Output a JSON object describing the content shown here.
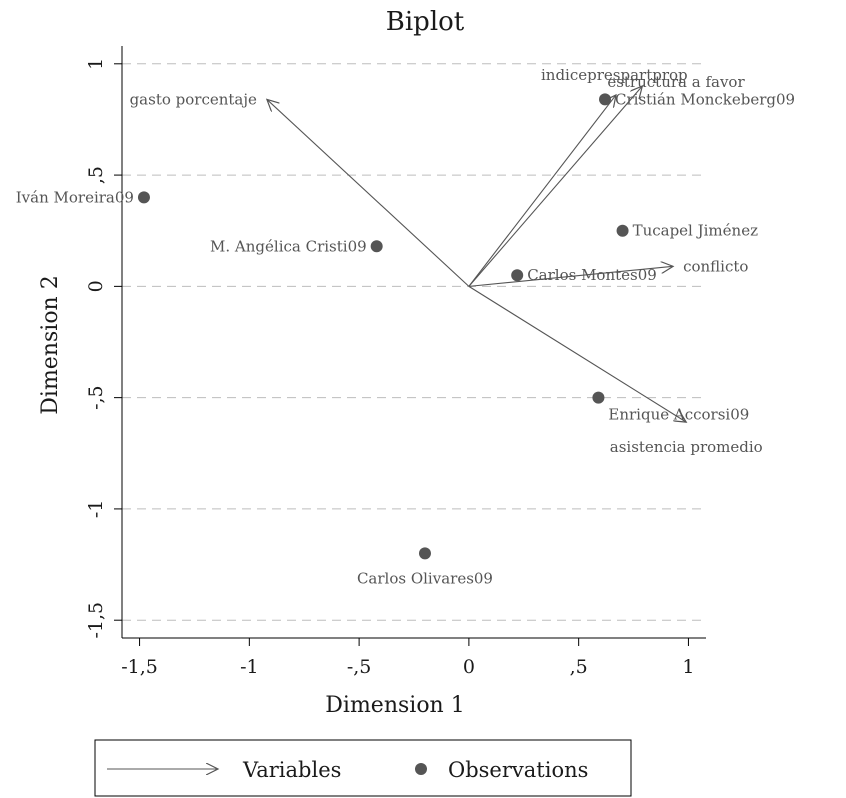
{
  "chart_data": {
    "type": "scatter",
    "title": "Biplot",
    "xlabel": "Dimension 1",
    "ylabel": "Dimension 2",
    "xlim": [
      -1.58,
      1.08
    ],
    "ylim": [
      -1.58,
      1.08
    ],
    "x_ticks": [
      -1.5,
      -1,
      -0.5,
      0,
      0.5,
      1
    ],
    "x_tick_labels": [
      "-1,5",
      "-1",
      "-,5",
      "0",
      ",5",
      "1"
    ],
    "y_ticks": [
      1,
      0.5,
      0,
      -0.5,
      -1,
      -1.5
    ],
    "y_tick_labels": [
      "1",
      ",5",
      "0",
      "-,5",
      "-1",
      "-1,5"
    ],
    "grid": "horizontal-dashed",
    "legend": {
      "position": "bottom",
      "entries": [
        {
          "name": "Variables",
          "marker": "arrow"
        },
        {
          "name": "Observations",
          "marker": "dot"
        }
      ]
    },
    "colors": {
      "marks": "#555555",
      "grid": "#bdbdbd",
      "text": "#1a1a1a"
    },
    "variables": [
      {
        "label": "gasto porcentaje",
        "x": -0.92,
        "y": 0.84,
        "label_pos": "left"
      },
      {
        "label": "estructura a favor",
        "x": 0.67,
        "y": 0.86,
        "label_pos": "above-right"
      },
      {
        "label": "indiceprespartprop",
        "x": 0.79,
        "y": 0.9,
        "label_pos": "above"
      },
      {
        "label": "conflicto",
        "x": 0.93,
        "y": 0.09,
        "label_pos": "right"
      },
      {
        "label": "asistencia promedio",
        "x": 0.99,
        "y": -0.61,
        "label_pos": "below"
      }
    ],
    "observations": [
      {
        "label": "Cristián Monckeberg09",
        "x": 0.62,
        "y": 0.84,
        "label_pos": "right"
      },
      {
        "label": "Iván Moreira09",
        "x": -1.48,
        "y": 0.4,
        "label_pos": "left"
      },
      {
        "label": "M. Angélica Cristi09",
        "x": -0.42,
        "y": 0.18,
        "label_pos": "left"
      },
      {
        "label": "Tucapel Jiménez",
        "x": 0.7,
        "y": 0.25,
        "label_pos": "right"
      },
      {
        "label": "Carlos Montes09",
        "x": 0.22,
        "y": 0.05,
        "label_pos": "right"
      },
      {
        "label": "Enrique Accorsi09",
        "x": 0.59,
        "y": -0.5,
        "label_pos": "below-right"
      },
      {
        "label": "Carlos Olivares09",
        "x": -0.2,
        "y": -1.2,
        "label_pos": "below"
      }
    ]
  }
}
